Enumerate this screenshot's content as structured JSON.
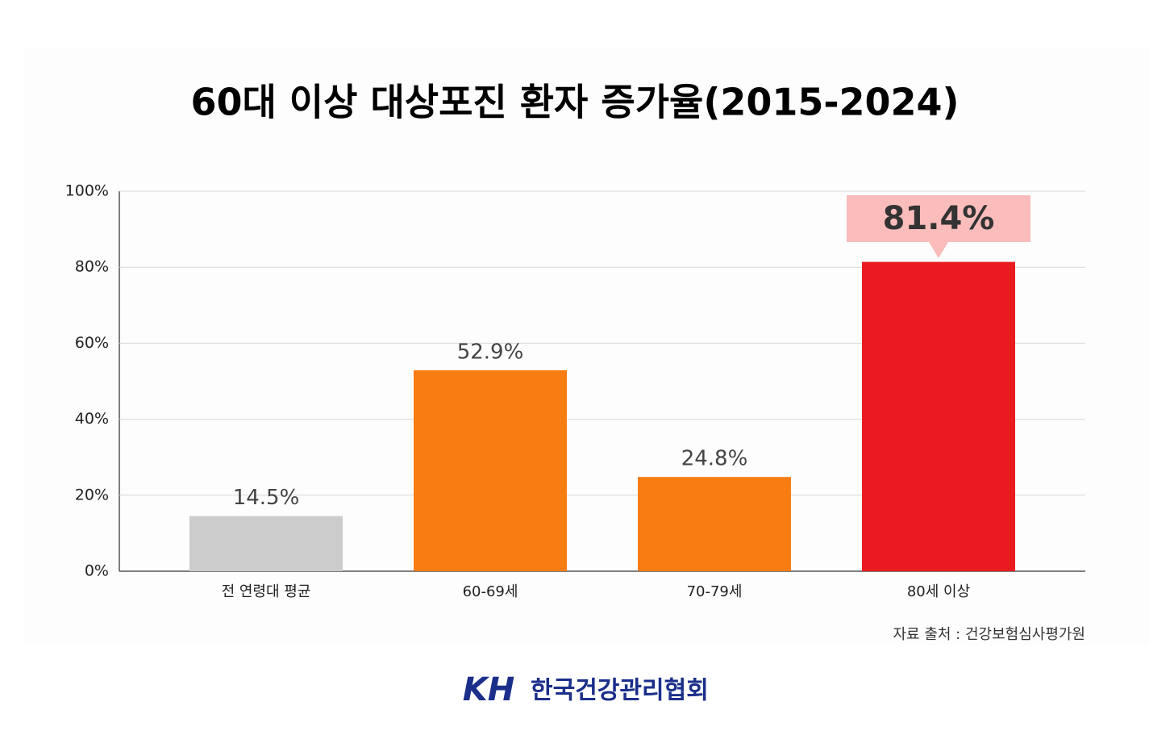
{
  "chart_data": {
    "type": "bar",
    "title": "60대 이상 대상포진 환자 증가율(2015-2024)",
    "categories": [
      "전 연령대 평균",
      "60-69세",
      "70-79세",
      "80세 이상"
    ],
    "values": [
      14.5,
      52.9,
      24.8,
      81.4
    ],
    "value_labels": [
      "14.5%",
      "52.9%",
      "24.8%",
      "81.4%"
    ],
    "colors": [
      "#cccccc",
      "#f97c12",
      "#f97c12",
      "#e81c1f"
    ],
    "highlight": {
      "index": 3,
      "color": "#fbbcbc"
    },
    "ylim": [
      0,
      100
    ],
    "yticks": [
      {
        "value": 0,
        "label": "0%"
      },
      {
        "value": 20,
        "label": "20%"
      },
      {
        "value": 40,
        "label": "40%"
      },
      {
        "value": 60,
        "label": "60%"
      },
      {
        "value": 80,
        "label": "80%"
      },
      {
        "value": 100,
        "label": "100%"
      }
    ],
    "grid": true,
    "source": "자료 출처 : 건강보험심사평가원"
  },
  "footer": {
    "logo": "KH",
    "organization": "한국건강관리협회"
  }
}
